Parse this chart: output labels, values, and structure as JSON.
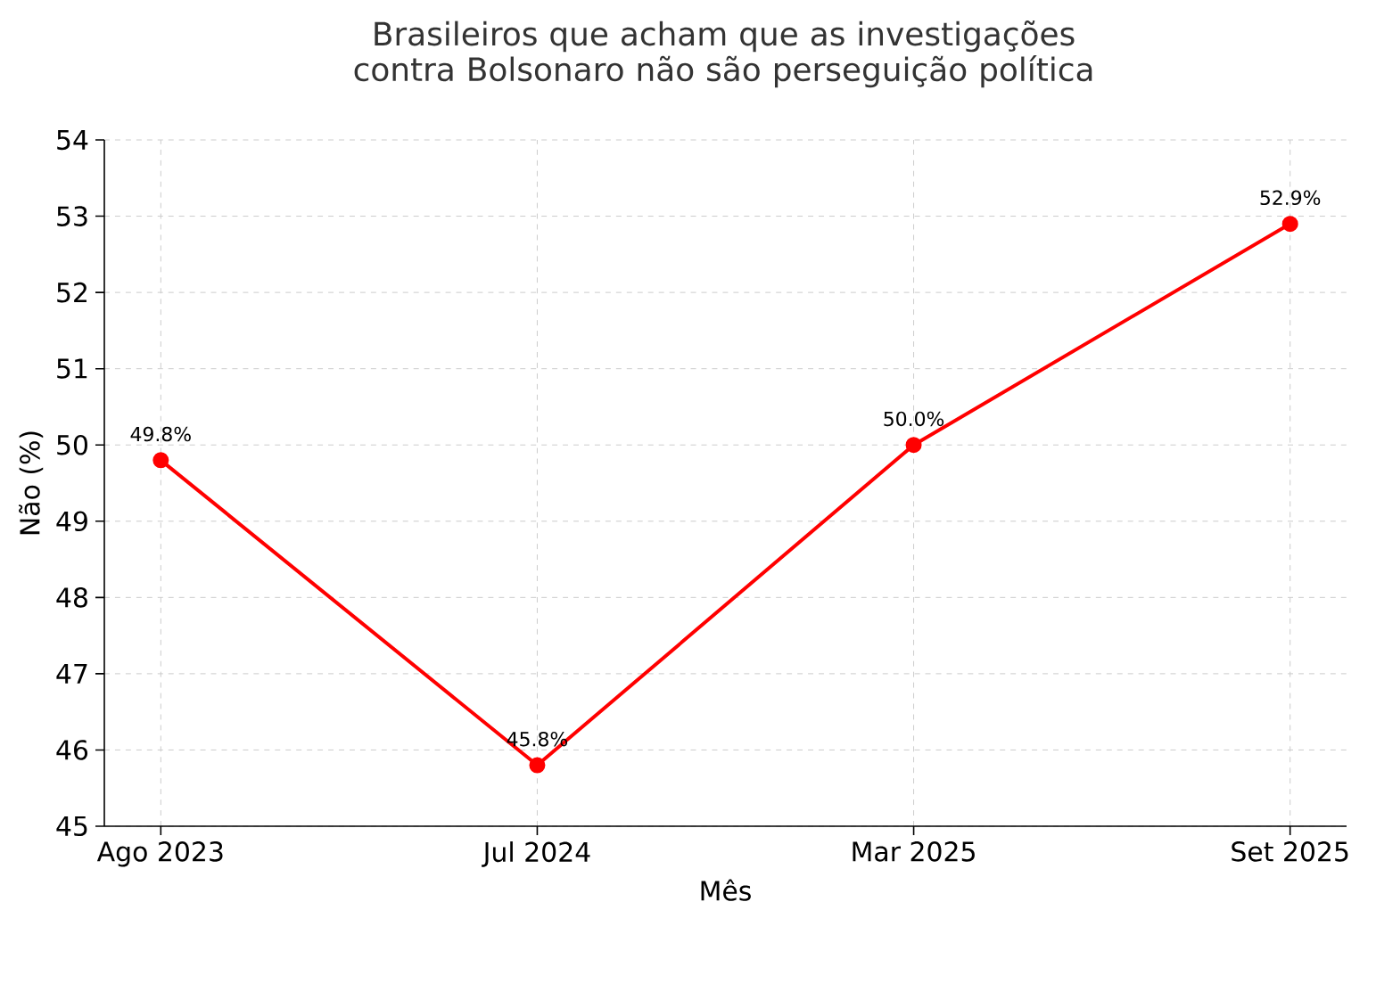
{
  "chart_data": {
    "type": "line",
    "title": "Brasileiros que acham que as investigações contra Bolsonaro não são perseguição política",
    "xlabel": "Mês",
    "ylabel": "Não (%)",
    "categories": [
      "Ago 2023",
      "Jul 2024",
      "Mar 2025",
      "Set 2025"
    ],
    "series": [
      {
        "color": "#ff0000",
        "values": [
          49.8,
          45.8,
          50.0,
          52.9
        ],
        "value_labels": [
          "49.8%",
          "45.8%",
          "50.0%",
          "52.9%"
        ]
      }
    ],
    "ylim": [
      45,
      54
    ],
    "yticks": [
      45,
      46,
      47,
      48,
      49,
      50,
      51,
      52,
      53,
      54
    ],
    "grid": true,
    "marker": "circle",
    "line_style": "solid"
  }
}
